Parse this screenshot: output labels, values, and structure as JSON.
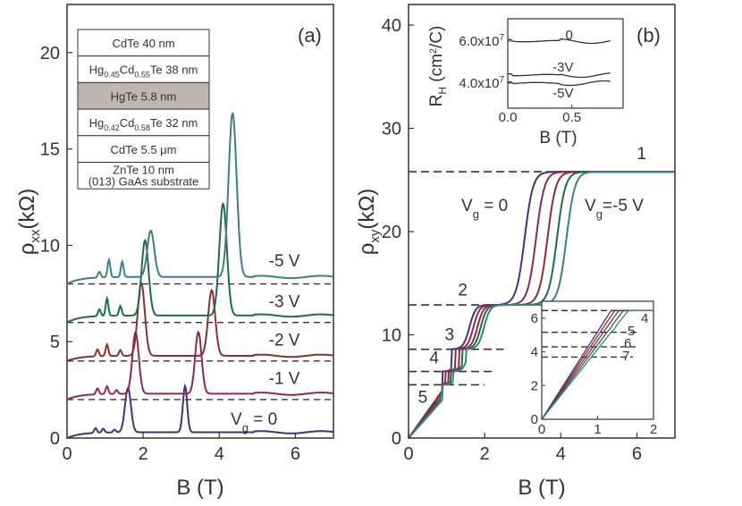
{
  "chart_data": [
    {
      "panel": "(a)",
      "type": "line",
      "xlabel": "B (T)",
      "ylabel_main": "ρ",
      "ylabel_sub": "xx",
      "ylabel_unit": "(kΩ)",
      "xlim": [
        0,
        7
      ],
      "ylim": [
        0,
        22.5
      ],
      "xticks": [
        0,
        2,
        4,
        6
      ],
      "yticks": [
        0,
        5,
        10,
        15,
        20
      ],
      "baselines": [
        2,
        4,
        6,
        8
      ],
      "series": [
        {
          "name": "V_g = 0",
          "color": "#4a3070",
          "offset": 0,
          "peaks": [
            {
              "B": 0.75,
              "h": 0.25,
              "w": 0.05
            },
            {
              "B": 0.95,
              "h": 0.2,
              "w": 0.05
            },
            {
              "B": 1.25,
              "h": 0.15,
              "w": 0.05
            },
            {
              "B": 1.6,
              "h": 2.3,
              "w": 0.11
            },
            {
              "B": 3.1,
              "h": 2.4,
              "w": 0.08
            }
          ],
          "base": 0.5
        },
        {
          "name": "-1 V",
          "color": "#8a2a55",
          "offset": 2,
          "peaks": [
            {
              "B": 0.8,
              "h": 0.3,
              "w": 0.05
            },
            {
              "B": 1.05,
              "h": 0.4,
              "w": 0.05
            },
            {
              "B": 1.3,
              "h": 0.2,
              "w": 0.05
            },
            {
              "B": 1.8,
              "h": 3.2,
              "w": 0.12
            },
            {
              "B": 3.45,
              "h": 3.2,
              "w": 0.12
            }
          ],
          "base": 0.5
        },
        {
          "name": "-2 V",
          "color": "#8b3030",
          "offset": 4,
          "peaks": [
            {
              "B": 0.8,
              "h": 0.35,
              "w": 0.05
            },
            {
              "B": 1.05,
              "h": 0.6,
              "w": 0.05
            },
            {
              "B": 1.4,
              "h": 0.3,
              "w": 0.05
            },
            {
              "B": 1.95,
              "h": 3.8,
              "w": 0.13
            },
            {
              "B": 3.8,
              "h": 3.4,
              "w": 0.13
            }
          ],
          "base": 0.45
        },
        {
          "name": "-3 V",
          "color": "#1f6b4a",
          "offset": 6,
          "peaks": [
            {
              "B": 0.85,
              "h": 0.35,
              "w": 0.05
            },
            {
              "B": 1.05,
              "h": 0.9,
              "w": 0.05
            },
            {
              "B": 1.4,
              "h": 0.5,
              "w": 0.05
            },
            {
              "B": 2.05,
              "h": 3.9,
              "w": 0.13
            },
            {
              "B": 4.1,
              "h": 5.8,
              "w": 0.14
            }
          ],
          "base": 0.6
        },
        {
          "name": "-5 V",
          "color": "#3e7f86",
          "offset": 8,
          "peaks": [
            {
              "B": 0.85,
              "h": 0.3,
              "w": 0.05
            },
            {
              "B": 1.1,
              "h": 0.9,
              "w": 0.05
            },
            {
              "B": 1.45,
              "h": 0.8,
              "w": 0.05
            },
            {
              "B": 2.2,
              "h": 2.4,
              "w": 0.13
            },
            {
              "B": 4.35,
              "h": 8.5,
              "w": 0.15
            }
          ],
          "base": 0.6
        }
      ],
      "curve_labels": [
        {
          "text": "-5 V",
          "B": 5.3,
          "y": 8.9
        },
        {
          "text": "-3 V",
          "B": 5.3,
          "y": 6.8
        },
        {
          "text": "-2 V",
          "B": 5.3,
          "y": 4.8
        },
        {
          "text": "-1 V",
          "B": 5.3,
          "y": 2.8
        },
        {
          "text": "V",
          "sub": "g",
          "after": " = 0",
          "B": 4.3,
          "y": 0.7
        }
      ],
      "layer_stack": [
        {
          "main": "CdTe  40 nm"
        },
        {
          "pre": "Hg",
          "s1": "0.45",
          "mid": "Cd",
          "s2": "0.55",
          "post": "Te  38 nm"
        },
        {
          "main": "HgTe  5.8 nm",
          "shaded": true
        },
        {
          "pre": "Hg",
          "s1": "0.42",
          "mid": "Cd",
          "s2": "0.58",
          "post": "Te  32 nm"
        },
        {
          "main": "CdTe  5.5 μm"
        },
        {
          "main": "ZnTe  10 nm",
          "line2": "(013) GaAs substrate"
        }
      ]
    },
    {
      "panel": "(b)",
      "type": "line",
      "xlabel": "B (T)",
      "ylabel_main": "ρ",
      "ylabel_sub": "xy",
      "ylabel_unit": "(kΩ)",
      "xlim": [
        0,
        7
      ],
      "ylim": [
        0,
        42
      ],
      "xticks": [
        0,
        2,
        4,
        6
      ],
      "yticks": [
        0,
        10,
        20,
        30,
        40
      ],
      "plateaus": [
        {
          "label": "1",
          "value": 25.8
        },
        {
          "label": "2",
          "value": 12.9
        },
        {
          "label": "3",
          "value": 8.6
        },
        {
          "label": "4",
          "value": 6.45
        },
        {
          "label": "5",
          "value": 5.16
        }
      ],
      "series": [
        {
          "name": "V_g = 0",
          "color": "#4a3070",
          "shift": 0
        },
        {
          "name": "-1 V",
          "color": "#8a2a55",
          "shift": 0.3
        },
        {
          "name": "-2 V",
          "color": "#8b3030",
          "shift": 0.6
        },
        {
          "name": "-3 V",
          "color": "#1f6b4a",
          "shift": 0.85
        },
        {
          "name": "-5 V",
          "color": "#3e7f86",
          "shift": 1.1
        }
      ],
      "labels": [
        {
          "text": "V",
          "sub": "g",
          "after": " = 0"
        },
        {
          "text": "V",
          "sub": "g",
          "after": "=-5 V"
        }
      ],
      "inset_hall": {
        "xlabel": "B (T)",
        "ylabel": "R",
        "ylabel_sub": "H",
        "ylabel_unit": " (cm",
        "ylabel_sup": "2",
        "ylabel_end": "/C)",
        "xticks": [
          "0.0",
          "0.5"
        ],
        "yticks": [
          "6.0x10",
          "4.0x10"
        ],
        "exponent": "7",
        "curve_labels": [
          "0",
          "-3V",
          "-5V"
        ]
      },
      "inset_zoom": {
        "xlim": [
          0,
          2
        ],
        "ylim": [
          0,
          7
        ],
        "xticks": [
          "0",
          "1",
          "2"
        ],
        "yticks": [
          "0",
          "2",
          "4",
          "6"
        ],
        "plateau_labels": [
          "4",
          "5",
          "6",
          "7"
        ]
      }
    }
  ]
}
